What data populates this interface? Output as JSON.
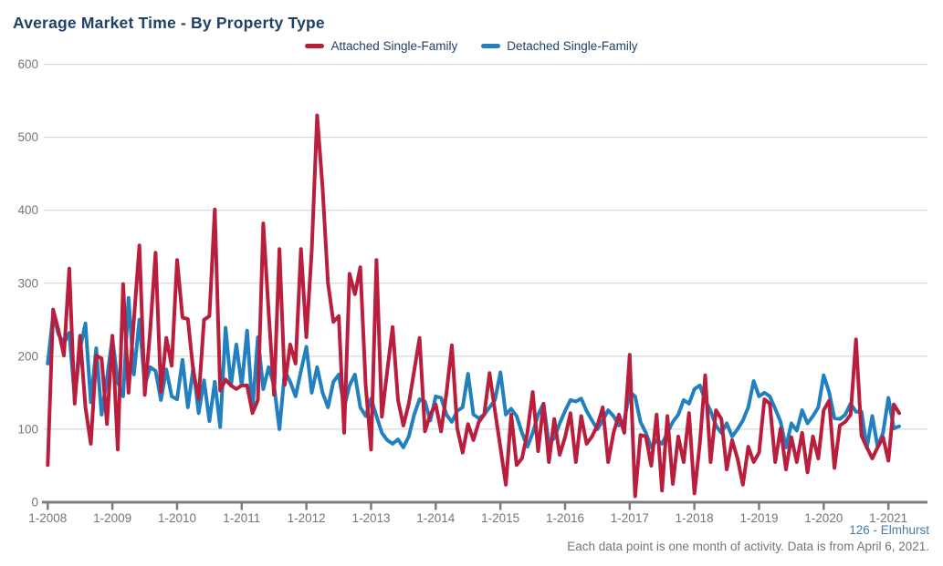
{
  "header": {
    "title": "Average Market Time - By Property Type",
    "title_color": "#1e4164"
  },
  "legend": [
    {
      "label": "Attached Single-Family",
      "color": "#b91e3d"
    },
    {
      "label": "Detached Single-Family",
      "color": "#2280c0"
    }
  ],
  "footer": {
    "link": "126 - Elmhurst",
    "link_color": "#4a7ba6",
    "note": "Each data point is one month of activity. Data is from April 6, 2021.",
    "note_color": "#757575"
  },
  "chart_data": {
    "type": "line",
    "title": "Average Market Time - By Property Type",
    "xlabel": "",
    "ylabel": "",
    "x_unit": "month",
    "x_start": "1-2008",
    "x_end": "3-2021",
    "x_tick_labels": [
      "1-2008",
      "1-2009",
      "1-2010",
      "1-2011",
      "1-2012",
      "1-2013",
      "1-2014",
      "1-2015",
      "1-2016",
      "1-2017",
      "1-2018",
      "1-2019",
      "1-2020",
      "1-2021"
    ],
    "months_per_tick": 12,
    "y_ticks": [
      0,
      100,
      200,
      300,
      400,
      500,
      600
    ],
    "ylim": [
      0,
      600
    ],
    "grid": "horizontal",
    "gridline_color": "#cfcfcf",
    "axis_color": "#7d7d7d",
    "tick_text_color": "#757575",
    "legend_position": "top",
    "series": [
      {
        "name": "Attached Single-Family",
        "color": "#b91e3d",
        "values": [
          51,
          264,
          235,
          201,
          320,
          135,
          228,
          130,
          80,
          201,
          197,
          107,
          228,
          72,
          299,
          150,
          250,
          352,
          147,
          235,
          342,
          151,
          225,
          187,
          332,
          253,
          251,
          180,
          142,
          250,
          255,
          401,
          153,
          168,
          160,
          155,
          160,
          160,
          122,
          140,
          382,
          260,
          147,
          347,
          161,
          216,
          190,
          347,
          226,
          345,
          530,
          430,
          300,
          247,
          255,
          95,
          313,
          285,
          322,
          160,
          72,
          332,
          117,
          180,
          240,
          140,
          105,
          135,
          180,
          225,
          97,
          120,
          134,
          97,
          150,
          215,
          101,
          68,
          107,
          85,
          110,
          120,
          177,
          125,
          75,
          24,
          120,
          51,
          60,
          95,
          151,
          70,
          135,
          55,
          114,
          65,
          89,
          122,
          55,
          118,
          80,
          90,
          105,
          130,
          55,
          95,
          120,
          95,
          202,
          8,
          92,
          90,
          50,
          120,
          16,
          118,
          25,
          90,
          55,
          122,
          12,
          80,
          174,
          55,
          126,
          114,
          45,
          85,
          60,
          24,
          76,
          55,
          68,
          141,
          135,
          55,
          101,
          45,
          89,
          55,
          95,
          41,
          90,
          60,
          126,
          139,
          47,
          105,
          110,
          120,
          223,
          91,
          75,
          60,
          75,
          89,
          57,
          134,
          122
        ]
      },
      {
        "name": "Detached Single-Family",
        "color": "#2280c0",
        "values": [
          190,
          257,
          230,
          218,
          232,
          143,
          210,
          245,
          137,
          211,
          120,
          170,
          225,
          165,
          145,
          280,
          175,
          250,
          160,
          185,
          180,
          140,
          182,
          145,
          141,
          195,
          130,
          184,
          122,
          167,
          111,
          165,
          103,
          239,
          160,
          216,
          160,
          235,
          126,
          226,
          155,
          185,
          160,
          100,
          180,
          165,
          145,
          180,
          213,
          150,
          185,
          150,
          130,
          165,
          175,
          130,
          160,
          175,
          130,
          118,
          142,
          118,
          95,
          85,
          80,
          86,
          75,
          90,
          120,
          141,
          138,
          112,
          145,
          143,
          120,
          110,
          125,
          130,
          176,
          120,
          115,
          120,
          130,
          140,
          178,
          120,
          128,
          118,
          95,
          76,
          95,
          120,
          135,
          80,
          88,
          108,
          125,
          140,
          138,
          142,
          125,
          112,
          100,
          112,
          126,
          118,
          105,
          112,
          151,
          145,
          110,
          95,
          75,
          85,
          80,
          95,
          110,
          120,
          140,
          135,
          155,
          160,
          140,
          125,
          105,
          95,
          108,
          90,
          100,
          112,
          130,
          166,
          145,
          150,
          145,
          128,
          110,
          75,
          108,
          98,
          126,
          108,
          118,
          130,
          174,
          151,
          115,
          114,
          120,
          135,
          124,
          124,
          74,
          118,
          76,
          95,
          143,
          101,
          104
        ]
      }
    ]
  }
}
